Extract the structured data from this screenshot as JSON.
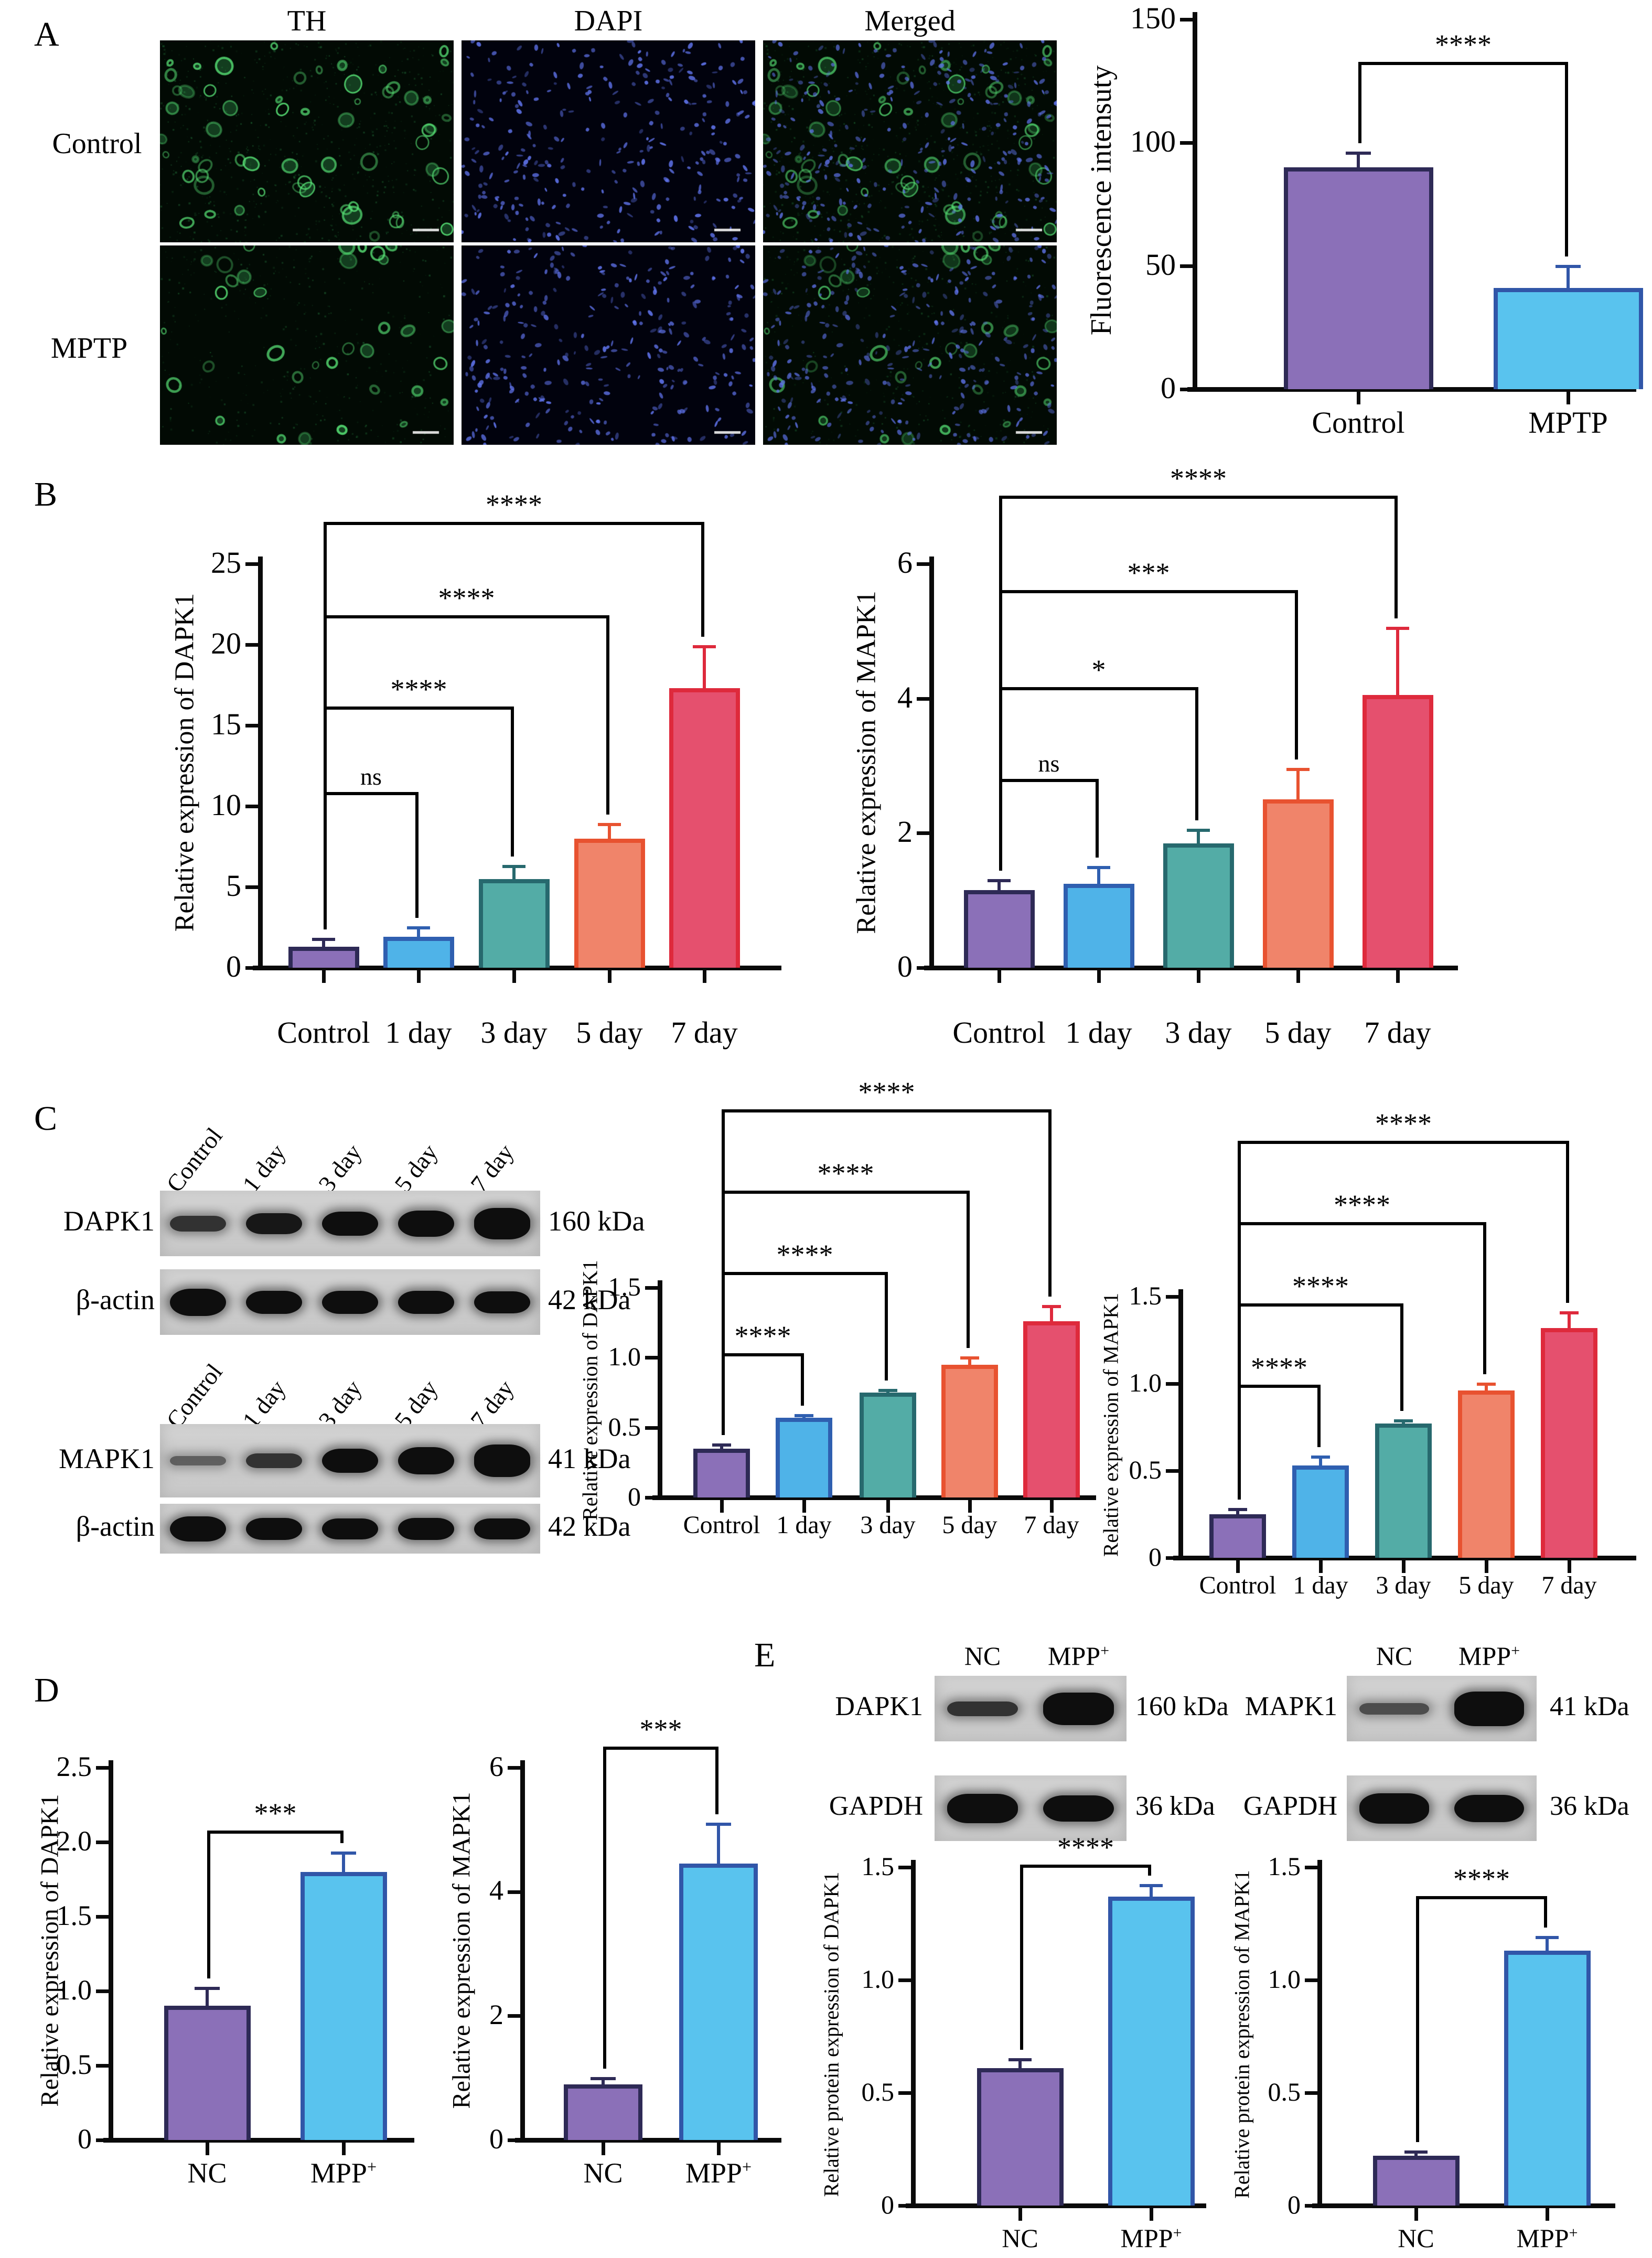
{
  "panelA": {
    "label": "A",
    "col_headers": [
      "TH",
      "DAPI",
      "Merged"
    ],
    "row_labels": [
      "Control",
      "MPTP"
    ],
    "micrographs": [
      {
        "row": "Control",
        "channel": "TH"
      },
      {
        "row": "Control",
        "channel": "DAPI"
      },
      {
        "row": "Control",
        "channel": "Merged"
      },
      {
        "row": "MPTP",
        "channel": "TH"
      },
      {
        "row": "MPTP",
        "channel": "DAPI"
      },
      {
        "row": "MPTP",
        "channel": "Merged"
      }
    ]
  },
  "panelB": {
    "label": "B"
  },
  "panelC": {
    "label": "C",
    "blot_groups": [
      {
        "lanes": [
          "Control",
          "1 day",
          "3 day",
          "5 day",
          "7 day"
        ],
        "rows": [
          {
            "protein": "DAPK1",
            "kda": "160 kDa",
            "bands": [
              {
                "h": 30,
                "o": 0.8
              },
              {
                "h": 40,
                "o": 0.95
              },
              {
                "h": 46,
                "o": 1
              },
              {
                "h": 50,
                "o": 1
              },
              {
                "h": 60,
                "o": 1
              }
            ]
          },
          {
            "protein": "β-actin",
            "kda": "42 kDa",
            "bands": [
              {
                "h": 52,
                "o": 1
              },
              {
                "h": 44,
                "o": 1
              },
              {
                "h": 44,
                "o": 1
              },
              {
                "h": 44,
                "o": 1
              },
              {
                "h": 42,
                "o": 1
              }
            ]
          }
        ]
      },
      {
        "lanes": [
          "Control",
          "1 day",
          "3 day",
          "5 day",
          "7 day"
        ],
        "rows": [
          {
            "protein": "MAPK1",
            "kda": "41 kDa",
            "bands": [
              {
                "h": 18,
                "o": 0.55
              },
              {
                "h": 28,
                "o": 0.8
              },
              {
                "h": 46,
                "o": 1
              },
              {
                "h": 52,
                "o": 1
              },
              {
                "h": 62,
                "o": 1
              }
            ]
          },
          {
            "protein": "β-actin",
            "kda": "42 kDa",
            "bands": [
              {
                "h": 48,
                "o": 1
              },
              {
                "h": 42,
                "o": 1
              },
              {
                "h": 40,
                "o": 1
              },
              {
                "h": 42,
                "o": 1
              },
              {
                "h": 40,
                "o": 1
              }
            ]
          }
        ]
      }
    ]
  },
  "panelD": {
    "label": "D"
  },
  "panelE": {
    "label": "E",
    "blot_groups": [
      {
        "lanes": [
          "NC",
          "MPP+"
        ],
        "rows": [
          {
            "protein": "DAPK1",
            "kda": "160 kDa",
            "bands": [
              {
                "h": 28,
                "o": 0.8
              },
              {
                "h": 62,
                "o": 1
              }
            ]
          },
          {
            "protein": "GAPDH",
            "kda": "36 kDa",
            "bands": [
              {
                "h": 56,
                "o": 1
              },
              {
                "h": 50,
                "o": 1
              }
            ]
          }
        ]
      },
      {
        "lanes": [
          "NC",
          "MPP+"
        ],
        "rows": [
          {
            "protein": "MAPK1",
            "kda": "41 kDa",
            "bands": [
              {
                "h": 22,
                "o": 0.65
              },
              {
                "h": 66,
                "o": 1
              }
            ]
          },
          {
            "protein": "GAPDH",
            "kda": "36 kDa",
            "bands": [
              {
                "h": 58,
                "o": 1
              },
              {
                "h": 52,
                "o": 1
              }
            ]
          }
        ]
      }
    ]
  },
  "chart_data": [
    {
      "id": "A",
      "type": "bar",
      "ylabel": "Fluorescence intensuty",
      "categories": [
        "Control",
        "MPTP"
      ],
      "values": [
        90,
        41
      ],
      "errors": [
        6,
        9
      ],
      "ylim": [
        0,
        150
      ],
      "yticks": [
        0,
        50,
        100,
        150
      ],
      "ytick_labels": [
        "0",
        "50",
        "100",
        "150"
      ],
      "colors": {
        "fills": [
          "#8B70B8",
          "#59C3EE"
        ],
        "borders": [
          "#2E2A56",
          "#3156A8"
        ]
      },
      "brackets": [
        {
          "from": 0,
          "to": 1,
          "label": "****"
        }
      ]
    },
    {
      "id": "B1",
      "type": "bar",
      "ylabel": "Relative expression of DAPK1",
      "categories": [
        "Control",
        "1 day",
        "3 day",
        "5 day",
        "7 day"
      ],
      "values": [
        1.3,
        1.9,
        5.5,
        8.0,
        17.3
      ],
      "errors": [
        0.5,
        0.6,
        0.8,
        0.9,
        2.6
      ],
      "ylim": [
        0,
        25
      ],
      "yticks": [
        0,
        5,
        10,
        15,
        20,
        25
      ],
      "ytick_labels": [
        "0",
        "5",
        "10",
        "15",
        "20",
        "25"
      ],
      "colors": {
        "fills": [
          "#8B70B8",
          "#4FB3E8",
          "#53ACA6",
          "#F0846A",
          "#E5506E"
        ],
        "borders": [
          "#2E2A56",
          "#2F5FB0",
          "#27696E",
          "#E85230",
          "#DE2A3C"
        ]
      },
      "brackets": [
        {
          "from": 0,
          "to": 1,
          "label": "ns"
        },
        {
          "from": 0,
          "to": 2,
          "label": "****"
        },
        {
          "from": 0,
          "to": 3,
          "label": "****"
        },
        {
          "from": 0,
          "to": 4,
          "label": "****"
        }
      ]
    },
    {
      "id": "B2",
      "type": "bar",
      "ylabel": "Relative expression of MAPK1",
      "categories": [
        "Control",
        "1 day",
        "3 day",
        "5 day",
        "7 day"
      ],
      "values": [
        1.15,
        1.25,
        1.85,
        2.5,
        4.05
      ],
      "errors": [
        0.15,
        0.25,
        0.2,
        0.45,
        1.0
      ],
      "ylim": [
        0,
        6
      ],
      "yticks": [
        0,
        2,
        4,
        6
      ],
      "ytick_labels": [
        "0",
        "2",
        "4",
        "6"
      ],
      "colors": {
        "fills": [
          "#8B70B8",
          "#4FB3E8",
          "#53ACA6",
          "#F0846A",
          "#E5506E"
        ],
        "borders": [
          "#2E2A56",
          "#2F5FB0",
          "#27696E",
          "#E85230",
          "#DE2A3C"
        ]
      },
      "brackets": [
        {
          "from": 0,
          "to": 1,
          "label": "ns"
        },
        {
          "from": 0,
          "to": 2,
          "label": "*"
        },
        {
          "from": 0,
          "to": 3,
          "label": "***"
        },
        {
          "from": 0,
          "to": 4,
          "label": "****"
        }
      ]
    },
    {
      "id": "C1",
      "type": "bar",
      "ylabel": "Relative expression of DAPK1",
      "categories": [
        "Control",
        "1 day",
        "3 day",
        "5 day",
        "7 day"
      ],
      "values": [
        0.35,
        0.57,
        0.75,
        0.95,
        1.26
      ],
      "errors": [
        0.03,
        0.02,
        0.02,
        0.05,
        0.11
      ],
      "ylim": [
        0,
        1.5
      ],
      "yticks": [
        0,
        0.5,
        1.0,
        1.5
      ],
      "ytick_labels": [
        "0",
        "0.5",
        "1.0",
        "1.5"
      ],
      "colors": {
        "fills": [
          "#8B70B8",
          "#4FB3E8",
          "#53ACA6",
          "#F0846A",
          "#E5506E"
        ],
        "borders": [
          "#2E2A56",
          "#2F5FB0",
          "#27696E",
          "#E85230",
          "#DE2A3C"
        ]
      },
      "brackets": [
        {
          "from": 0,
          "to": 1,
          "label": "****"
        },
        {
          "from": 0,
          "to": 2,
          "label": "****"
        },
        {
          "from": 0,
          "to": 3,
          "label": "****"
        },
        {
          "from": 0,
          "to": 4,
          "label": "****"
        }
      ]
    },
    {
      "id": "C2",
      "type": "bar",
      "ylabel": "Relative expression of MAPK1",
      "categories": [
        "Control",
        "1 day",
        "3 day",
        "5 day",
        "7 day"
      ],
      "values": [
        0.25,
        0.53,
        0.77,
        0.96,
        1.32
      ],
      "errors": [
        0.03,
        0.05,
        0.02,
        0.04,
        0.09
      ],
      "ylim": [
        0,
        1.5
      ],
      "yticks": [
        0,
        0.5,
        1.0,
        1.5
      ],
      "ytick_labels": [
        "0",
        "0.5",
        "1.0",
        "1.5"
      ],
      "colors": {
        "fills": [
          "#8B70B8",
          "#4FB3E8",
          "#53ACA6",
          "#F0846A",
          "#E5506E"
        ],
        "borders": [
          "#2E2A56",
          "#2F5FB0",
          "#27696E",
          "#E85230",
          "#DE2A3C"
        ]
      },
      "brackets": [
        {
          "from": 0,
          "to": 1,
          "label": "****"
        },
        {
          "from": 0,
          "to": 2,
          "label": "****"
        },
        {
          "from": 0,
          "to": 3,
          "label": "****"
        },
        {
          "from": 0,
          "to": 4,
          "label": "****"
        }
      ]
    },
    {
      "id": "D1",
      "type": "bar",
      "ylabel": "Relative expression of DAPK1",
      "categories": [
        "NC",
        "MPP+"
      ],
      "values": [
        0.9,
        1.8
      ],
      "errors": [
        0.12,
        0.13
      ],
      "ylim": [
        0,
        2.5
      ],
      "yticks": [
        0,
        0.5,
        1.0,
        1.5,
        2.0,
        2.5
      ],
      "ytick_labels": [
        "0",
        "0.5",
        "1.0",
        "1.5",
        "2.0",
        "2.5"
      ],
      "colors": {
        "fills": [
          "#8B70B8",
          "#59C3EE"
        ],
        "borders": [
          "#2E2A56",
          "#3156A8"
        ]
      },
      "brackets": [
        {
          "from": 0,
          "to": 1,
          "label": "***"
        }
      ]
    },
    {
      "id": "D2",
      "type": "bar",
      "ylabel": "Relative expression of MAPK1",
      "categories": [
        "NC",
        "MPP+"
      ],
      "values": [
        0.9,
        4.45
      ],
      "errors": [
        0.1,
        0.65
      ],
      "ylim": [
        0,
        6
      ],
      "yticks": [
        0,
        2,
        4,
        6
      ],
      "ytick_labels": [
        "0",
        "2",
        "4",
        "6"
      ],
      "colors": {
        "fills": [
          "#8B70B8",
          "#59C3EE"
        ],
        "borders": [
          "#2E2A56",
          "#3156A8"
        ]
      },
      "brackets": [
        {
          "from": 0,
          "to": 1,
          "label": "***"
        }
      ]
    },
    {
      "id": "E1",
      "type": "bar",
      "ylabel": "Relative protein expression of DAPK1",
      "categories": [
        "NC",
        "MPP+"
      ],
      "values": [
        0.61,
        1.37
      ],
      "errors": [
        0.04,
        0.05
      ],
      "ylim": [
        0,
        1.5
      ],
      "yticks": [
        0,
        0.5,
        1.0,
        1.5
      ],
      "ytick_labels": [
        "0",
        "0.5",
        "1.0",
        "1.5"
      ],
      "colors": {
        "fills": [
          "#8B70B8",
          "#59C3EE"
        ],
        "borders": [
          "#2E2A56",
          "#3156A8"
        ]
      },
      "brackets": [
        {
          "from": 0,
          "to": 1,
          "label": "****"
        }
      ]
    },
    {
      "id": "E2",
      "type": "bar",
      "ylabel": "Relative protein expression of MAPK1",
      "categories": [
        "NC",
        "MPP+"
      ],
      "values": [
        0.22,
        1.13
      ],
      "errors": [
        0.02,
        0.06
      ],
      "ylim": [
        0,
        1.5
      ],
      "yticks": [
        0,
        0.5,
        1.0,
        1.5
      ],
      "ytick_labels": [
        "0",
        "0.5",
        "1.0",
        "1.5"
      ],
      "colors": {
        "fills": [
          "#8B70B8",
          "#59C3EE"
        ],
        "borders": [
          "#2E2A56",
          "#3156A8"
        ]
      },
      "brackets": [
        {
          "from": 0,
          "to": 1,
          "label": "****"
        }
      ]
    }
  ]
}
